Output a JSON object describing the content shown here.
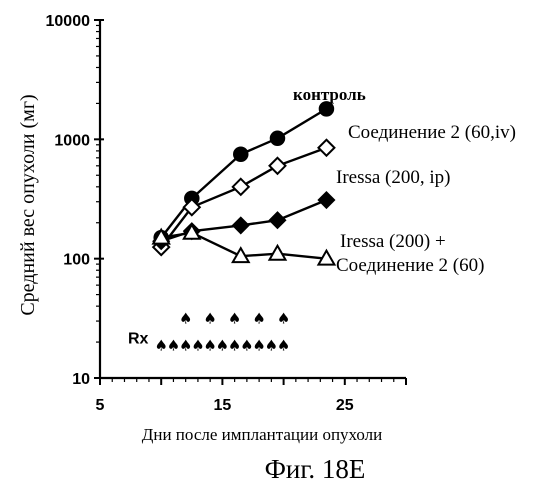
{
  "chart_data": {
    "type": "line",
    "title": "",
    "xlabel": "Дни после имплантации опухоли",
    "ylabel": "Средний вес опухоли (мг)",
    "xlim": [
      5,
      30
    ],
    "ylim": [
      10,
      10000
    ],
    "y_scale": "log",
    "x_ticks": [
      5,
      15,
      25
    ],
    "y_ticks": [
      10,
      100,
      1000,
      10000
    ],
    "y_tick_labels": [
      "10",
      "100",
      "1000",
      "10000"
    ],
    "grid": false,
    "legend": "direct-labels",
    "series": [
      {
        "name": "контроль",
        "marker": "filled-circle",
        "x": [
          10,
          12.5,
          16.5,
          19.5,
          23.5
        ],
        "y": [
          150,
          320,
          750,
          1020,
          1800
        ]
      },
      {
        "name": "Соединение 2 (60,iv)",
        "marker": "open-diamond",
        "x": [
          10,
          12.5,
          16.5,
          19.5,
          23.5
        ],
        "y": [
          125,
          270,
          400,
          600,
          850
        ]
      },
      {
        "name": "Iressa (200, ip)",
        "marker": "filled-diamond",
        "x": [
          10,
          12.5,
          16.5,
          19.5,
          23.5
        ],
        "y": [
          140,
          170,
          190,
          210,
          310
        ]
      },
      {
        "name": "Iressa (200) + Соединение 2 (60)",
        "marker": "open-triangle",
        "x": [
          10,
          12.5,
          16.5,
          19.5,
          23.5
        ],
        "y": [
          150,
          165,
          105,
          110,
          100
        ]
      }
    ],
    "annotations": {
      "rx_label": "Rx",
      "rx_upper_days": [
        12,
        14,
        16,
        18,
        20
      ],
      "rx_upper_level": 32,
      "rx_lower_days": [
        10,
        11,
        12,
        13,
        14,
        15,
        16,
        17,
        18,
        19,
        20
      ],
      "rx_lower_level": 19
    }
  },
  "figure_caption": "Фиг. 18Е"
}
